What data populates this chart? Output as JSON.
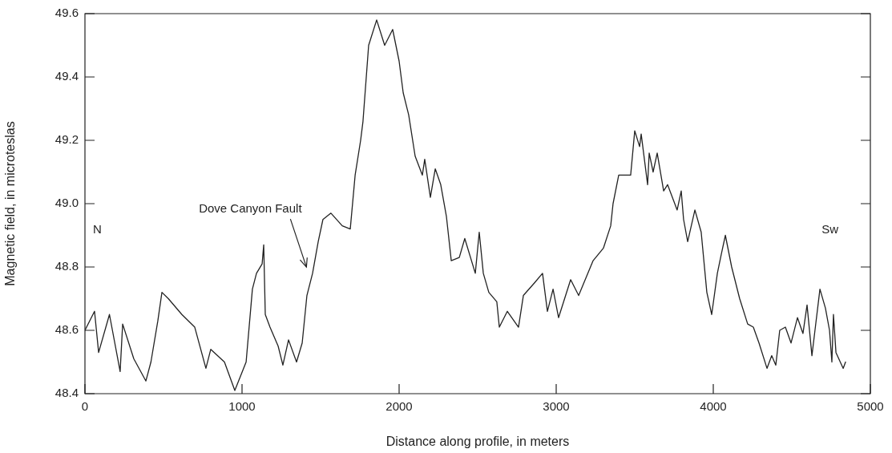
{
  "chart_data": {
    "type": "line",
    "xlabel": "Distance along profile, in meters",
    "ylabel": "Magnetic field, in microteslas",
    "xlim": [
      0,
      5000
    ],
    "xticks": [
      0,
      1000,
      2000,
      3000,
      4000,
      5000
    ],
    "ylim": [
      48.4,
      49.6
    ],
    "yticks": [
      48.4,
      48.6,
      48.8,
      {
        "value": 49,
        "label": "49.0"
      },
      49.2,
      49.4,
      49.6
    ],
    "marker": "none",
    "line_style": "solid",
    "annotations": [
      "N",
      "Dove Canyon Fault",
      "Sw"
    ],
    "series": [
      {
        "color": "#222222",
        "x": [
          0,
          61,
          87,
          156,
          224,
          240,
          311,
          388,
          420,
          464,
          490,
          531,
          617,
          699,
          770,
          801,
          888,
          954,
          1026,
          1066,
          1092,
          1128,
          1138,
          1148,
          1178,
          1230,
          1260,
          1296,
          1347,
          1383,
          1413,
          1449,
          1485,
          1515,
          1566,
          1638,
          1689,
          1720,
          1755,
          1770,
          1806,
          1857,
          1908,
          1959,
          2000,
          2026,
          2061,
          2102,
          2148,
          2163,
          2199,
          2230,
          2265,
          2301,
          2332,
          2383,
          2418,
          2485,
          2510,
          2536,
          2571,
          2622,
          2638,
          2689,
          2760,
          2791,
          2862,
          2913,
          2944,
          2980,
          3015,
          3092,
          3143,
          3235,
          3301,
          3347,
          3362,
          3398,
          3474,
          3500,
          3531,
          3541,
          3582,
          3592,
          3617,
          3643,
          3684,
          3709,
          3770,
          3796,
          3811,
          3837,
          3883,
          3923,
          3959,
          3990,
          4026,
          4051,
          4077,
          4117,
          4168,
          4219,
          4255,
          4291,
          4342,
          4372,
          4398,
          4423,
          4459,
          4495,
          4536,
          4571,
          4597,
          4628,
          4679,
          4714,
          4740,
          4755,
          4765,
          4781,
          4827,
          4842
        ],
        "values": [
          48.6,
          48.66,
          48.53,
          48.65,
          48.47,
          48.62,
          48.51,
          48.44,
          48.5,
          48.63,
          48.72,
          48.7,
          48.65,
          48.61,
          48.48,
          48.54,
          48.5,
          48.41,
          48.5,
          48.73,
          48.78,
          48.81,
          48.87,
          48.65,
          48.61,
          48.55,
          48.49,
          48.57,
          48.5,
          48.56,
          48.71,
          48.78,
          48.88,
          48.95,
          48.97,
          48.93,
          48.92,
          49.09,
          49.2,
          49.26,
          49.5,
          49.58,
          49.5,
          49.55,
          49.45,
          49.35,
          49.28,
          49.15,
          49.09,
          49.14,
          49.02,
          49.11,
          49.06,
          48.96,
          48.82,
          48.83,
          48.89,
          48.78,
          48.91,
          48.78,
          48.72,
          48.69,
          48.61,
          48.66,
          48.61,
          48.71,
          48.75,
          48.78,
          48.66,
          48.73,
          48.64,
          48.76,
          48.71,
          48.82,
          48.86,
          48.93,
          49.0,
          49.09,
          49.09,
          49.23,
          49.18,
          49.22,
          49.06,
          49.16,
          49.1,
          49.16,
          49.04,
          49.06,
          48.98,
          49.04,
          48.95,
          48.88,
          48.98,
          48.91,
          48.72,
          48.65,
          48.78,
          48.84,
          48.9,
          48.8,
          48.7,
          48.62,
          48.61,
          48.56,
          48.48,
          48.52,
          48.49,
          48.6,
          48.61,
          48.56,
          48.64,
          48.59,
          48.68,
          48.52,
          48.73,
          48.67,
          48.6,
          48.5,
          48.65,
          48.53,
          48.48,
          48.5
        ]
      }
    ]
  }
}
